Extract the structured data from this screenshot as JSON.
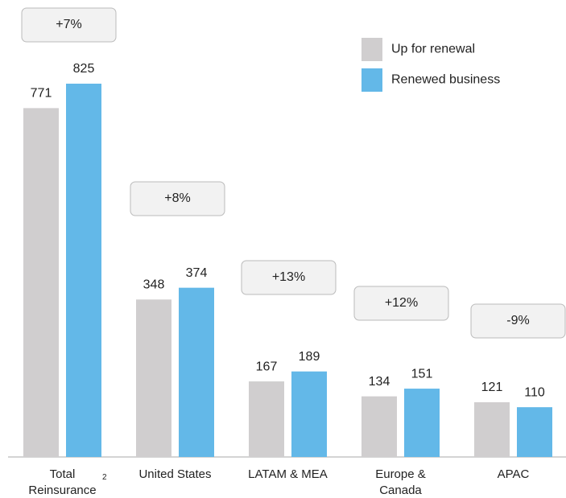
{
  "chart_data": {
    "type": "bar",
    "categories": [
      "Total Reinsurance",
      "United States",
      "LATAM & MEA",
      "Europe & Canada",
      "APAC"
    ],
    "footnote_marker": "2",
    "series": [
      {
        "name": "Up for renewal",
        "color": "#d0cecf",
        "values": [
          771,
          348,
          167,
          134,
          121
        ]
      },
      {
        "name": "Renewed business",
        "color": "#63b8e8",
        "values": [
          825,
          374,
          189,
          151,
          110
        ]
      }
    ],
    "changes": [
      "+7%",
      "+8%",
      "+13%",
      "+12%",
      "-9%"
    ],
    "legend": "top-right"
  }
}
